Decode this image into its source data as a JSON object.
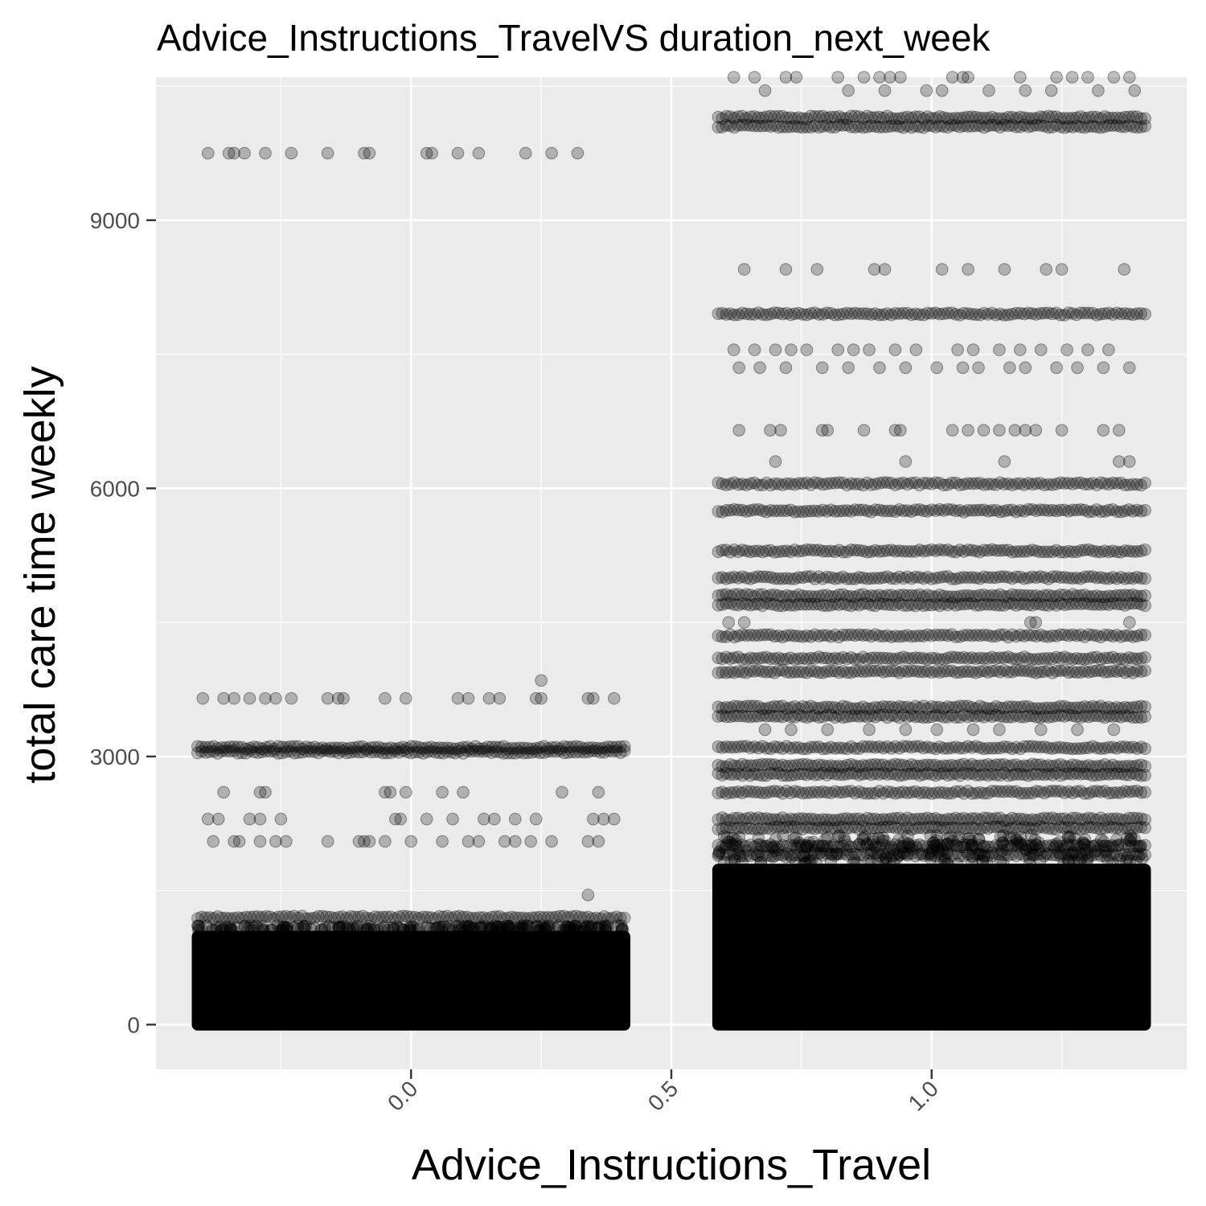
{
  "chart_data": {
    "type": "scatter",
    "title": "Advice_Instructions_TravelVS duration_next_week",
    "xlabel": "Advice_Instructions_Travel",
    "ylabel": "total care time weekly",
    "xlim": [
      -0.49,
      1.49
    ],
    "ylim": [
      -500,
      10600
    ],
    "x_ticks": [
      {
        "value": 0.0,
        "label": "0.0"
      },
      {
        "value": 0.5,
        "label": "0.5"
      },
      {
        "value": 1.0,
        "label": "1.0"
      }
    ],
    "y_ticks": [
      {
        "value": 0,
        "label": "0"
      },
      {
        "value": 3000,
        "label": "3000"
      },
      {
        "value": 6000,
        "label": "6000"
      },
      {
        "value": 9000,
        "label": "9000"
      }
    ],
    "x_minor": [
      -0.25,
      0.25,
      0.75,
      1.25
    ],
    "y_minor": [
      1500,
      4500,
      7500,
      10500
    ],
    "grid": true,
    "background": "#ebebeb",
    "point_color": "#000000",
    "point_alpha": 0.25,
    "jitter_width": 0.41,
    "series": [
      {
        "x": 0,
        "dense_band": [
          0,
          1050
        ],
        "lines": [
          1200,
          3050,
          3100
        ],
        "outliers": [
          [
            -0.39,
            9750
          ],
          [
            -0.35,
            9750
          ],
          [
            -0.34,
            9750
          ],
          [
            -0.32,
            9750
          ],
          [
            -0.28,
            9750
          ],
          [
            -0.23,
            9750
          ],
          [
            -0.16,
            9750
          ],
          [
            -0.09,
            9750
          ],
          [
            -0.08,
            9750
          ],
          [
            0.03,
            9750
          ],
          [
            0.04,
            9750
          ],
          [
            0.09,
            9750
          ],
          [
            0.13,
            9750
          ],
          [
            0.22,
            9750
          ],
          [
            0.27,
            9750
          ],
          [
            0.32,
            9750
          ],
          [
            -0.4,
            3650
          ],
          [
            -0.36,
            3650
          ],
          [
            -0.34,
            3650
          ],
          [
            -0.31,
            3650
          ],
          [
            -0.28,
            3650
          ],
          [
            -0.26,
            3650
          ],
          [
            -0.23,
            3650
          ],
          [
            -0.16,
            3650
          ],
          [
            -0.14,
            3650
          ],
          [
            -0.13,
            3650
          ],
          [
            -0.05,
            3650
          ],
          [
            -0.01,
            3650
          ],
          [
            0.09,
            3650
          ],
          [
            0.11,
            3650
          ],
          [
            0.15,
            3650
          ],
          [
            0.17,
            3650
          ],
          [
            0.24,
            3650
          ],
          [
            0.25,
            3650
          ],
          [
            0.34,
            3650
          ],
          [
            0.35,
            3650
          ],
          [
            0.39,
            3650
          ],
          [
            0.25,
            3850
          ],
          [
            -0.36,
            2600
          ],
          [
            -0.29,
            2600
          ],
          [
            -0.28,
            2600
          ],
          [
            -0.05,
            2600
          ],
          [
            -0.04,
            2600
          ],
          [
            -0.01,
            2600
          ],
          [
            0.06,
            2600
          ],
          [
            0.1,
            2600
          ],
          [
            0.29,
            2600
          ],
          [
            0.36,
            2600
          ],
          [
            -0.39,
            2300
          ],
          [
            -0.37,
            2300
          ],
          [
            -0.31,
            2300
          ],
          [
            -0.29,
            2300
          ],
          [
            -0.25,
            2300
          ],
          [
            -0.03,
            2300
          ],
          [
            -0.02,
            2300
          ],
          [
            0.03,
            2300
          ],
          [
            0.08,
            2300
          ],
          [
            0.14,
            2300
          ],
          [
            0.16,
            2300
          ],
          [
            0.2,
            2300
          ],
          [
            0.24,
            2300
          ],
          [
            0.35,
            2300
          ],
          [
            0.37,
            2300
          ],
          [
            0.39,
            2300
          ],
          [
            -0.38,
            2050
          ],
          [
            -0.34,
            2050
          ],
          [
            -0.33,
            2050
          ],
          [
            -0.29,
            2050
          ],
          [
            -0.26,
            2050
          ],
          [
            -0.24,
            2050
          ],
          [
            -0.16,
            2050
          ],
          [
            -0.1,
            2050
          ],
          [
            -0.09,
            2050
          ],
          [
            -0.08,
            2050
          ],
          [
            -0.05,
            2050
          ],
          [
            0.0,
            2050
          ],
          [
            0.06,
            2050
          ],
          [
            0.11,
            2050
          ],
          [
            0.13,
            2050
          ],
          [
            0.18,
            2050
          ],
          [
            0.2,
            2050
          ],
          [
            0.23,
            2050
          ],
          [
            0.27,
            2050
          ],
          [
            0.34,
            2050
          ],
          [
            0.36,
            2050
          ],
          [
            0.34,
            1450
          ]
        ]
      },
      {
        "x": 1,
        "dense_band": [
          0,
          1800
        ],
        "lines": [
          10150,
          10050,
          7950,
          6050,
          5750,
          5300,
          5000,
          4800,
          4700,
          4350,
          4100,
          3950,
          3550,
          3450,
          3100,
          2900,
          2800,
          2600,
          2300,
          2200,
          2000,
          1900
        ],
        "outliers": [
          [
            0.62,
            10600
          ],
          [
            0.66,
            10600
          ],
          [
            0.72,
            10600
          ],
          [
            0.74,
            10600
          ],
          [
            0.82,
            10600
          ],
          [
            0.87,
            10600
          ],
          [
            0.9,
            10600
          ],
          [
            0.92,
            10600
          ],
          [
            0.94,
            10600
          ],
          [
            1.04,
            10600
          ],
          [
            1.06,
            10600
          ],
          [
            1.07,
            10600
          ],
          [
            1.17,
            10600
          ],
          [
            1.24,
            10600
          ],
          [
            1.27,
            10600
          ],
          [
            1.3,
            10600
          ],
          [
            1.35,
            10600
          ],
          [
            1.38,
            10600
          ],
          [
            0.68,
            10450
          ],
          [
            0.84,
            10450
          ],
          [
            0.91,
            10450
          ],
          [
            0.99,
            10450
          ],
          [
            1.02,
            10450
          ],
          [
            1.11,
            10450
          ],
          [
            1.18,
            10450
          ],
          [
            1.23,
            10450
          ],
          [
            1.32,
            10450
          ],
          [
            1.39,
            10450
          ],
          [
            0.64,
            8450
          ],
          [
            0.72,
            8450
          ],
          [
            0.78,
            8450
          ],
          [
            0.89,
            8450
          ],
          [
            0.91,
            8450
          ],
          [
            1.02,
            8450
          ],
          [
            1.07,
            8450
          ],
          [
            1.14,
            8450
          ],
          [
            1.22,
            8450
          ],
          [
            1.25,
            8450
          ],
          [
            1.37,
            8450
          ],
          [
            0.62,
            7550
          ],
          [
            0.66,
            7550
          ],
          [
            0.7,
            7550
          ],
          [
            0.73,
            7550
          ],
          [
            0.76,
            7550
          ],
          [
            0.82,
            7550
          ],
          [
            0.85,
            7550
          ],
          [
            0.88,
            7550
          ],
          [
            0.93,
            7550
          ],
          [
            0.97,
            7550
          ],
          [
            1.05,
            7550
          ],
          [
            1.08,
            7550
          ],
          [
            1.13,
            7550
          ],
          [
            1.17,
            7550
          ],
          [
            1.21,
            7550
          ],
          [
            1.26,
            7550
          ],
          [
            1.3,
            7550
          ],
          [
            1.34,
            7550
          ],
          [
            0.63,
            7350
          ],
          [
            0.67,
            7350
          ],
          [
            0.72,
            7350
          ],
          [
            0.79,
            7350
          ],
          [
            0.84,
            7350
          ],
          [
            0.9,
            7350
          ],
          [
            0.95,
            7350
          ],
          [
            1.01,
            7350
          ],
          [
            1.06,
            7350
          ],
          [
            1.09,
            7350
          ],
          [
            1.15,
            7350
          ],
          [
            1.18,
            7350
          ],
          [
            1.24,
            7350
          ],
          [
            1.28,
            7350
          ],
          [
            1.33,
            7350
          ],
          [
            1.38,
            7350
          ],
          [
            0.63,
            6650
          ],
          [
            0.69,
            6650
          ],
          [
            0.71,
            6650
          ],
          [
            0.79,
            6650
          ],
          [
            0.8,
            6650
          ],
          [
            0.87,
            6650
          ],
          [
            0.93,
            6650
          ],
          [
            0.94,
            6650
          ],
          [
            1.04,
            6650
          ],
          [
            1.07,
            6650
          ],
          [
            1.1,
            6650
          ],
          [
            1.13,
            6650
          ],
          [
            1.16,
            6650
          ],
          [
            1.18,
            6650
          ],
          [
            1.2,
            6650
          ],
          [
            1.25,
            6650
          ],
          [
            1.33,
            6650
          ],
          [
            1.36,
            6650
          ],
          [
            0.7,
            6300
          ],
          [
            0.95,
            6300
          ],
          [
            1.14,
            6300
          ],
          [
            1.36,
            6300
          ],
          [
            1.38,
            6300
          ],
          [
            0.61,
            4500
          ],
          [
            0.64,
            4500
          ],
          [
            1.19,
            4500
          ],
          [
            1.2,
            4500
          ],
          [
            1.38,
            4500
          ],
          [
            0.68,
            3300
          ],
          [
            0.73,
            3300
          ],
          [
            0.8,
            3300
          ],
          [
            0.88,
            3300
          ],
          [
            0.95,
            3300
          ],
          [
            1.01,
            3300
          ],
          [
            1.08,
            3300
          ],
          [
            1.13,
            3300
          ],
          [
            1.21,
            3300
          ],
          [
            1.28,
            3300
          ],
          [
            1.35,
            3300
          ]
        ]
      }
    ]
  }
}
